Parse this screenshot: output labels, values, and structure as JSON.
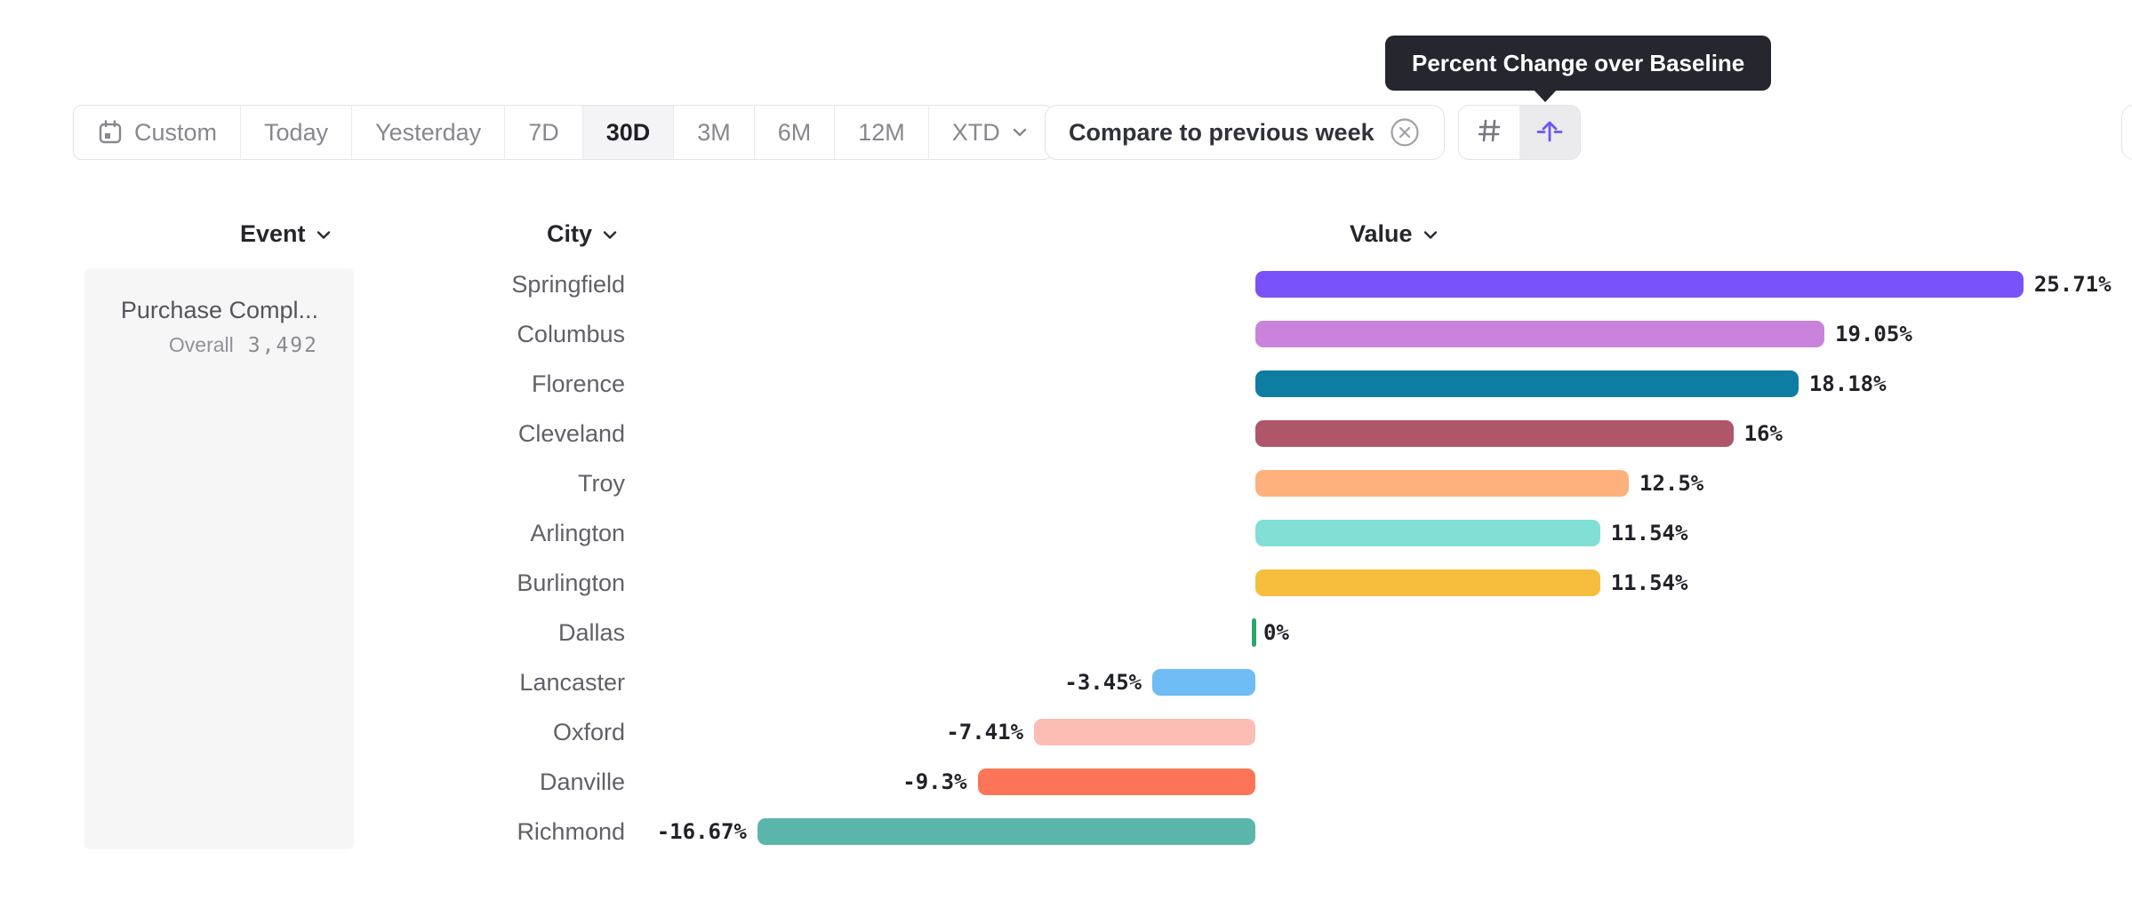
{
  "tooltip": {
    "text": "Percent Change over Baseline"
  },
  "toolbar": {
    "time_ranges": {
      "selected": "30D",
      "items": [
        {
          "label": "Custom",
          "icon": "calendar-icon"
        },
        {
          "label": "Today"
        },
        {
          "label": "Yesterday"
        },
        {
          "label": "7D"
        },
        {
          "label": "30D",
          "selected": true
        },
        {
          "label": "3M"
        },
        {
          "label": "6M"
        },
        {
          "label": "12M"
        },
        {
          "label": "XTD",
          "chevron": true
        }
      ]
    },
    "compare_chip": {
      "label": "Compare to previous week",
      "icon": "circle-x-icon"
    },
    "view_toggle": {
      "buttons": [
        {
          "name": "numbers-view",
          "icon": "hash-icon",
          "active": false
        },
        {
          "name": "percent-change-view",
          "icon": "baseline-arrow-icon",
          "active": true
        }
      ]
    }
  },
  "columns": [
    {
      "label": "Event"
    },
    {
      "label": "City"
    },
    {
      "label": "Value"
    }
  ],
  "event_panel": {
    "event_name": "Purchase Compl...",
    "segment_label": "Overall",
    "segment_value": "3,492"
  },
  "colors": {
    "accent_purple": "#6d55f0",
    "tooltip_bg": "#26262e",
    "panel_bg": "#f6f6f7",
    "zero_tick_green": "#2da56d"
  },
  "chart_data": {
    "type": "bar",
    "orientation": "horizontal",
    "value_unit": "percent change vs baseline",
    "categories": [
      "Springfield",
      "Columbus",
      "Florence",
      "Cleveland",
      "Troy",
      "Arlington",
      "Burlington",
      "Dallas",
      "Lancaster",
      "Oxford",
      "Danville",
      "Richmond"
    ],
    "values": [
      25.71,
      19.05,
      18.18,
      16,
      12.5,
      11.54,
      11.54,
      0,
      -3.45,
      -7.41,
      -9.3,
      -16.67
    ],
    "value_labels": [
      "25.71%",
      "19.05%",
      "18.18%",
      "16%",
      "12.5%",
      "11.54%",
      "11.54%",
      "0%",
      "-3.45%",
      "-7.41%",
      "-9.3%",
      "-16.67%"
    ],
    "colors": [
      "#7a52f9",
      "#c983dc",
      "#0e7da1",
      "#b05669",
      "#feb17c",
      "#81dfd5",
      "#f6be3c",
      "#2da56d",
      "#70bcf4",
      "#fcbdb5",
      "#fd7558",
      "#5ab6ab"
    ],
    "baseline": 0,
    "xlim": [
      -20,
      29
    ],
    "grid": false,
    "legend": false
  }
}
